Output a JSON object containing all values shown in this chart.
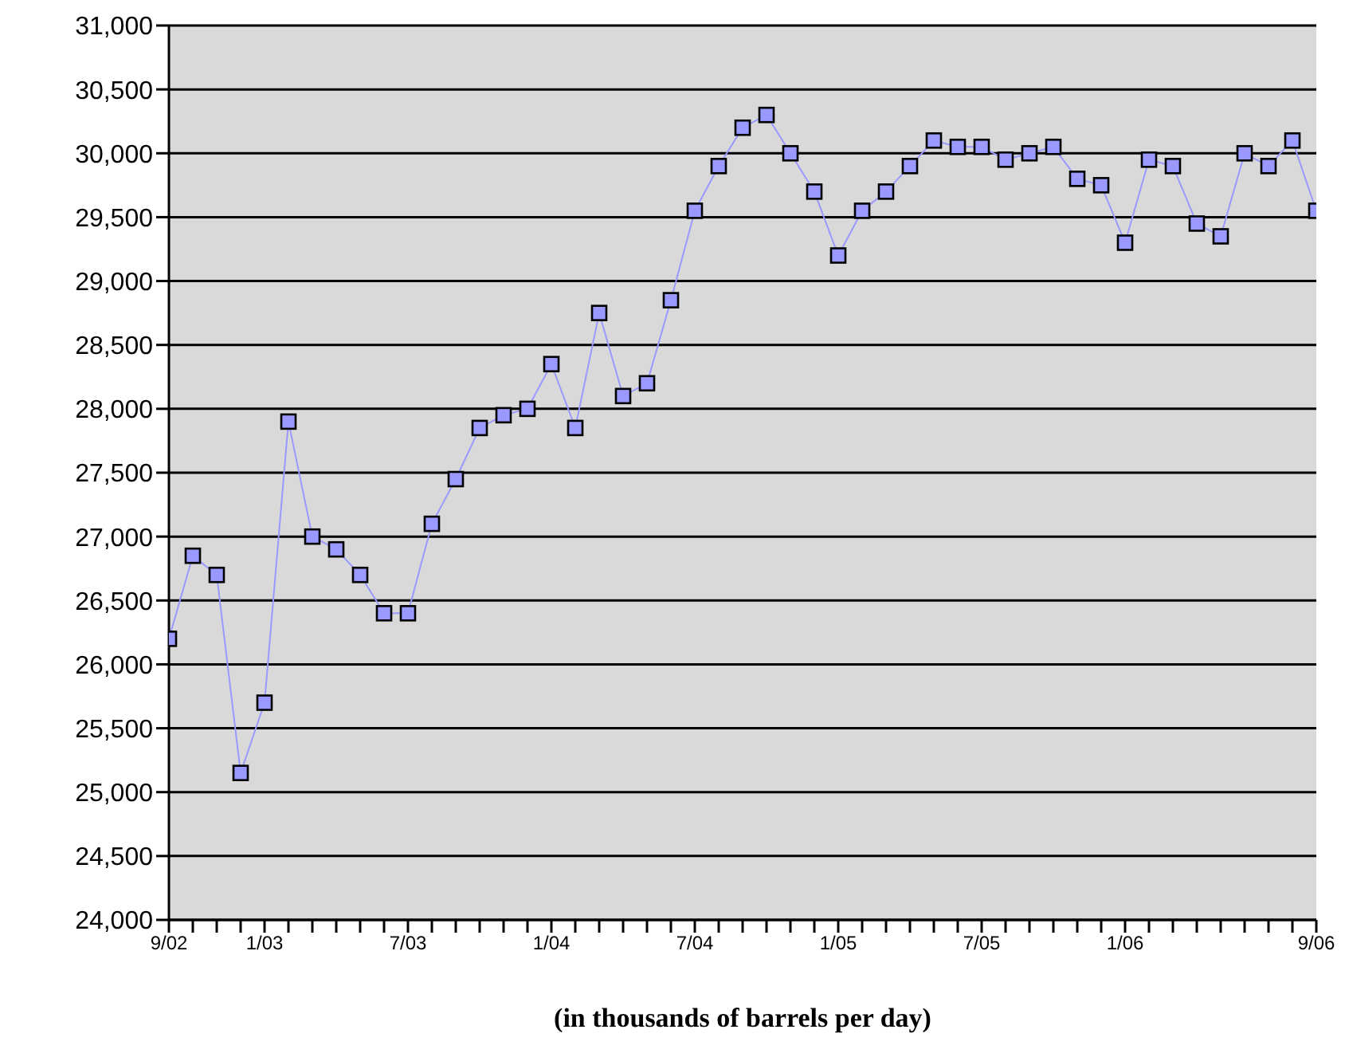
{
  "chart_data": {
    "type": "line",
    "xlabel": "(in thousands of barrels per day)",
    "categories": [
      "9/02",
      null,
      null,
      null,
      "1/03",
      null,
      null,
      null,
      null,
      null,
      "7/03",
      null,
      null,
      null,
      null,
      null,
      "1/04",
      null,
      null,
      null,
      null,
      null,
      "7/04",
      null,
      null,
      null,
      null,
      null,
      "1/05",
      null,
      null,
      null,
      null,
      null,
      "7/05",
      null,
      null,
      null,
      null,
      null,
      "1/06",
      null,
      null,
      null,
      null,
      null,
      null,
      null,
      "9/06"
    ],
    "series": [
      {
        "color": "#9999ff",
        "values": [
          26200,
          26850,
          26700,
          25150,
          25700,
          27900,
          27000,
          26900,
          26700,
          26400,
          26400,
          27100,
          27450,
          27850,
          27950,
          28000,
          28350,
          27850,
          28750,
          28100,
          28200,
          28850,
          29550,
          29900,
          30200,
          30300,
          30000,
          29700,
          29200,
          29550,
          29700,
          29900,
          30100,
          30050,
          30050,
          29950,
          30000,
          30050,
          29800,
          29750,
          29300,
          29950,
          29900,
          29450,
          29350,
          30000,
          29900,
          30100,
          29550
        ]
      }
    ],
    "ylim": [
      24000,
      31000
    ],
    "yticks": [
      {
        "value": 24000,
        "label": "24,000"
      },
      {
        "value": 24500,
        "label": "24,500"
      },
      {
        "value": 25000,
        "label": "25,000"
      },
      {
        "value": 25500,
        "label": "25,500"
      },
      {
        "value": 26000,
        "label": "26,000"
      },
      {
        "value": 26500,
        "label": "26,500"
      },
      {
        "value": 27000,
        "label": "27,000"
      },
      {
        "value": 27500,
        "label": "27,500"
      },
      {
        "value": 28000,
        "label": "28,000"
      },
      {
        "value": 28500,
        "label": "28,500"
      },
      {
        "value": 29000,
        "label": "29,000"
      },
      {
        "value": 29500,
        "label": "29,500"
      },
      {
        "value": 30000,
        "label": "30,000"
      },
      {
        "value": 30500,
        "label": "30,500"
      },
      {
        "value": 31000,
        "label": "31,000"
      }
    ],
    "grid": "y",
    "legend": false,
    "marker": "square",
    "line_style": "solid"
  }
}
